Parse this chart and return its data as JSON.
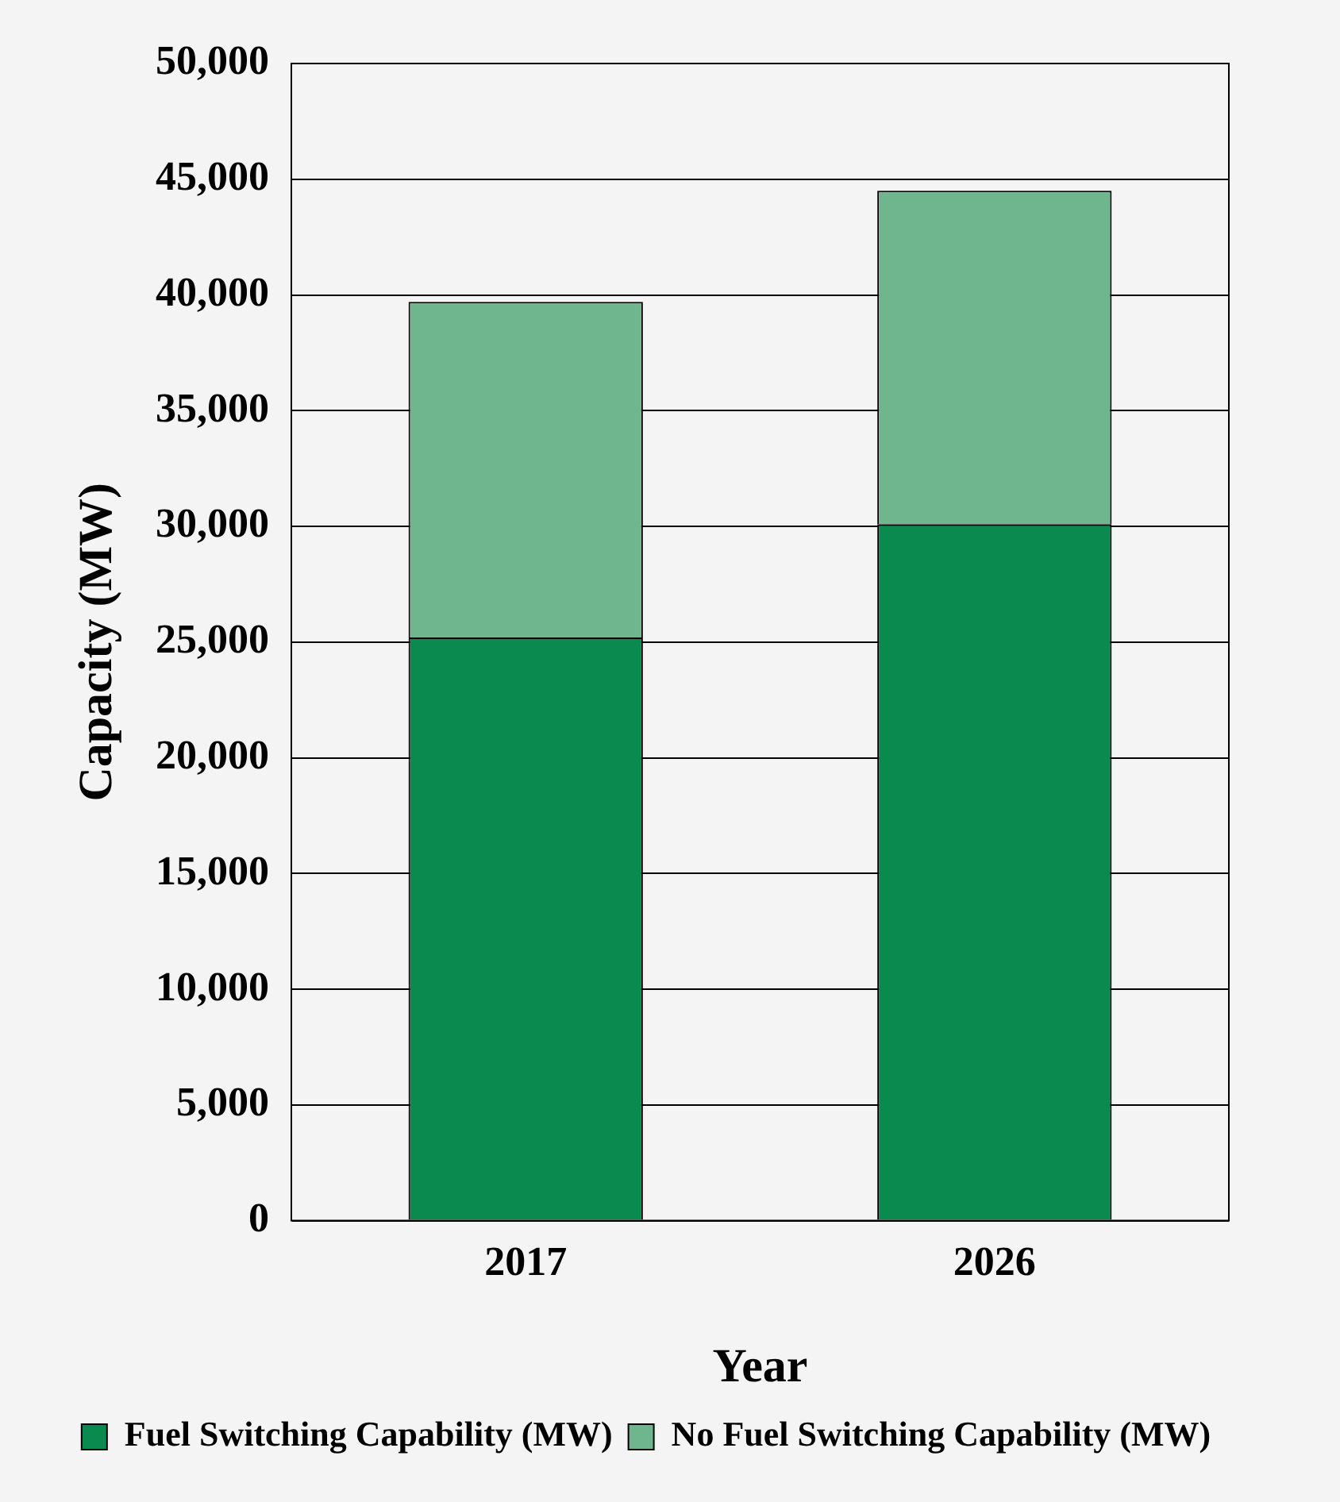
{
  "chart_data": {
    "type": "bar",
    "xlabel": "Year",
    "ylabel": "Capacity (MW)",
    "categories": [
      "2017",
      "2026"
    ],
    "stacked": true,
    "series": [
      {
        "name": "Fuel Switching Capability (MW)",
        "color": "#0b8a4f",
        "values": [
          25200,
          30100
        ]
      },
      {
        "name": "No Fuel Switching Capability (MW)",
        "color": "#6fb58e",
        "values": [
          14500,
          14400
        ]
      }
    ],
    "ylim": [
      0,
      50000
    ],
    "yticks": [
      0,
      {
        "value": 5000,
        "label": "5,000"
      },
      {
        "value": 10000,
        "label": "10,000"
      },
      {
        "value": 15000,
        "label": "15,000"
      },
      {
        "value": 20000,
        "label": "20,000"
      },
      {
        "value": 25000,
        "label": "25,000"
      },
      {
        "value": 30000,
        "label": "30,000"
      },
      {
        "value": 35000,
        "label": "35,000"
      },
      {
        "value": 40000,
        "label": "40,000"
      },
      {
        "value": 45000,
        "label": "45,000"
      },
      {
        "value": 50000,
        "label": "50,000"
      }
    ],
    "grid": "y",
    "legend": "bottom"
  }
}
